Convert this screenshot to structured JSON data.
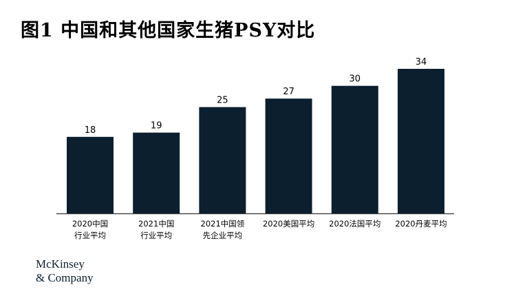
{
  "title": "图1 中国和其他国家生猪PSY对比",
  "logo": {
    "line1": "McKinsey",
    "line2": "& Company"
  },
  "colors": {
    "bar": "#0b1f2e",
    "axis": "#333333",
    "text": "#000000"
  },
  "chart_data": {
    "type": "bar",
    "categories": [
      [
        "2020中国",
        "行业平均"
      ],
      [
        "2021中国",
        "行业平均"
      ],
      [
        "2021中国领",
        "先企业平均"
      ],
      [
        "2020美国平均"
      ],
      [
        "2020法国平均"
      ],
      [
        "2020丹麦平均"
      ]
    ],
    "values": [
      18,
      19,
      25,
      27,
      30,
      34
    ],
    "ylim": [
      0,
      34
    ],
    "grid": false,
    "data_labels": true
  }
}
